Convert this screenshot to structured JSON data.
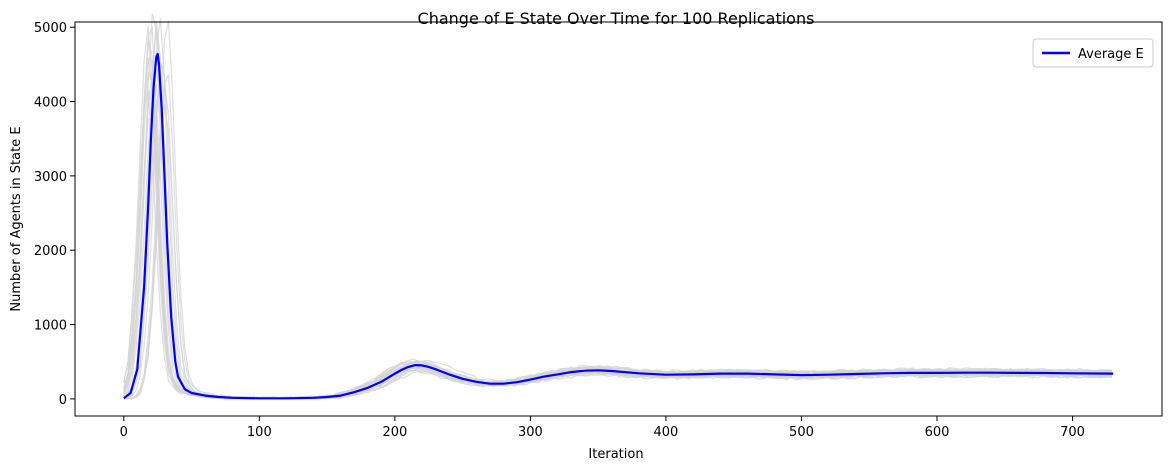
{
  "chart_data": {
    "type": "line",
    "title": "Change of E State Over Time for 100 Replications",
    "xlabel": "Iteration",
    "ylabel": "Number of Agents in State E",
    "xlim": [
      -36,
      766
    ],
    "ylim": [
      -230,
      5070
    ],
    "x_ticks": [
      0,
      100,
      200,
      300,
      400,
      500,
      600,
      700
    ],
    "y_ticks": [
      0,
      1000,
      2000,
      3000,
      4000,
      5000
    ],
    "grid": false,
    "legend": {
      "placement": "top-right",
      "entries": [
        "Average E"
      ]
    },
    "colors": {
      "average": "#0000ff",
      "replications": "#d3d3d3"
    },
    "replication_count": 100,
    "series": [
      {
        "name": "Average E",
        "x": [
          0,
          5,
          10,
          15,
          18,
          20,
          22,
          24,
          25,
          26,
          28,
          30,
          32,
          35,
          38,
          40,
          45,
          50,
          60,
          70,
          80,
          100,
          120,
          140,
          150,
          160,
          170,
          180,
          190,
          200,
          205,
          210,
          215,
          220,
          225,
          230,
          240,
          250,
          260,
          270,
          280,
          290,
          300,
          310,
          320,
          330,
          340,
          350,
          360,
          380,
          400,
          420,
          440,
          460,
          480,
          500,
          520,
          540,
          560,
          580,
          600,
          620,
          640,
          660,
          680,
          700,
          730
        ],
        "values": [
          10,
          80,
          400,
          1500,
          2600,
          3500,
          4200,
          4600,
          4640,
          4500,
          3900,
          3000,
          2100,
          1100,
          500,
          300,
          130,
          80,
          45,
          25,
          15,
          8,
          8,
          15,
          25,
          45,
          90,
          150,
          230,
          340,
          390,
          430,
          455,
          450,
          430,
          400,
          330,
          270,
          230,
          205,
          205,
          225,
          260,
          300,
          330,
          360,
          380,
          385,
          375,
          345,
          325,
          330,
          340,
          340,
          330,
          320,
          325,
          335,
          345,
          350,
          350,
          352,
          352,
          350,
          348,
          345,
          340
        ]
      }
    ]
  }
}
